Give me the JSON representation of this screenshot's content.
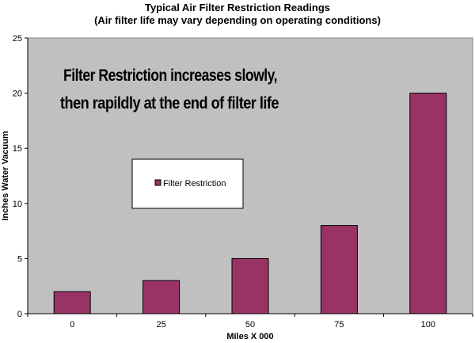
{
  "chart_data": {
    "type": "bar",
    "title": "Typical Air Filter Restriction Readings",
    "subtitle": "(Air filter life may vary depending on operating conditions)",
    "xlabel": "Miles X 000",
    "ylabel": "Inches Water Vacuum",
    "categories": [
      "0",
      "25",
      "50",
      "75",
      "100"
    ],
    "series": [
      {
        "name": "Filter Restriction",
        "values": [
          2,
          3,
          5,
          8,
          20
        ],
        "color": "#993366"
      }
    ],
    "ylim": [
      0,
      25
    ],
    "yticks": [
      0,
      5,
      10,
      15,
      20,
      25
    ],
    "grid": false,
    "legend": "center-left",
    "plot_background": "#c0c0c0",
    "annotation": {
      "line1": "Filter Restriction increases slowly,",
      "line2": "then rapildly at the end  of filter life"
    }
  }
}
